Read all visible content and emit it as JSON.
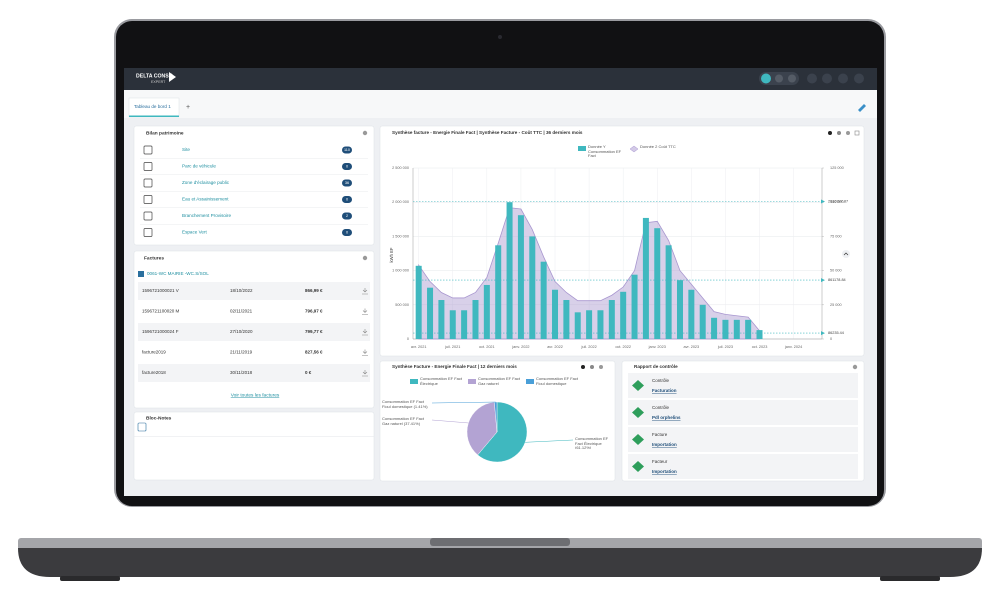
{
  "header": {
    "brand": "DELTA CONSO",
    "brand_sub": "EXPERT"
  },
  "tabs": {
    "active": "Tableau de bord 1",
    "add": "+"
  },
  "bilan": {
    "title": "Bilan patrimoine",
    "rows": [
      {
        "label": "Site",
        "count": 110
      },
      {
        "label": "Parc de véhicule",
        "count": 0
      },
      {
        "label": "Zone d'éclairage public",
        "count": 36
      },
      {
        "label": "Eau et Assainissement",
        "count": 0
      },
      {
        "label": "Branchement Provisoire",
        "count": 2
      },
      {
        "label": "Espace Vert",
        "count": 0
      }
    ]
  },
  "factures": {
    "title": "Factures",
    "site": "0061-WC MAIRIE -WC.S/SOL",
    "rows": [
      [
        "1596721000021 V",
        "18/10/2022",
        "866,99 €"
      ],
      [
        "1596721100020 M",
        "02/11/2021",
        "796,97 €"
      ],
      [
        "1596721000024 F",
        "27/10/2020",
        "799,77 €"
      ],
      [
        "facture2019",
        "21/11/2019",
        "827,56 €"
      ],
      [
        "facture2018",
        "30/11/2018",
        "0 €"
      ]
    ],
    "link": "Voir toutes les factures"
  },
  "notes": {
    "title": "Bloc-Notes"
  },
  "rapport": {
    "title": "Rapport de contrôle",
    "items": [
      {
        "kind": "Contrôle",
        "link": "Facturation"
      },
      {
        "kind": "Contrôle",
        "link": "Pdl orphelins"
      },
      {
        "kind": "Facture",
        "link": "Importation"
      },
      {
        "kind": "Facteur",
        "link": "Importation"
      }
    ]
  },
  "chart_data": [
    {
      "type": "bar",
      "title": "Synthèse facture - Energie Finale Fact | Synthèse Facture - Coût TTC | 36 derniers mois",
      "y_label": "kWh EF",
      "categories": [
        "avr. 2021",
        null,
        null,
        "juil. 2021",
        null,
        null,
        "oct. 2021",
        null,
        null,
        "janv. 2022",
        null,
        null,
        "avr. 2022",
        null,
        null,
        "juil. 2022",
        null,
        null,
        "oct. 2022",
        null,
        null,
        "janv. 2023",
        null,
        null,
        "avr. 2023",
        null,
        null,
        "juil. 2023",
        null,
        null,
        "oct. 2023",
        null,
        null,
        "janv. 2024",
        null,
        null
      ],
      "series": [
        {
          "name": "Donnée Y Consommation EF Fact",
          "type": "bar",
          "color": "#3fb8bf",
          "values": [
            1070000,
            750000,
            570000,
            420000,
            420000,
            570000,
            790000,
            1370000,
            2000000,
            1810000,
            1500000,
            1130000,
            720000,
            570000,
            390000,
            420000,
            420000,
            570000,
            690000,
            940000,
            1770000,
            1620000,
            1370000,
            860000,
            720000,
            500000,
            310000,
            280000,
            280000,
            280000,
            130000,
            null,
            null,
            null,
            null,
            null
          ]
        },
        {
          "name": "Donnée 2 Coût TTC",
          "type": "area",
          "axis": "y2",
          "color": "#a896cf",
          "values": [
            54000,
            42000,
            34000,
            30000,
            30000,
            34000,
            45000,
            70000,
            96000,
            95000,
            80000,
            60000,
            42000,
            34000,
            28000,
            28000,
            28000,
            32000,
            38000,
            50000,
            85000,
            86000,
            72000,
            50000,
            40000,
            30000,
            20000,
            18000,
            17000,
            16000,
            6000,
            null,
            null,
            null,
            null,
            null
          ]
        }
      ],
      "ylim": [
        0,
        2500000
      ],
      "yticks": [
        0,
        {
          "value": 500000,
          "label": "500 000"
        },
        {
          "value": 1000000,
          "label": "1 000 000"
        },
        {
          "value": 1500000,
          "label": "1 500 000"
        },
        {
          "value": 2000000,
          "label": "2 000 000"
        },
        {
          "value": 2500000,
          "label": "2 500 000"
        }
      ],
      "y2lim": [
        0,
        125000
      ],
      "y2ticks": [
        0,
        {
          "value": 25000,
          "label": "25 000"
        },
        {
          "value": 50000,
          "label": "50 000"
        },
        {
          "value": 75000,
          "label": "75 000"
        },
        {
          "value": 100000,
          "label": "100 000"
        },
        {
          "value": 125000,
          "label": "125 000"
        }
      ],
      "annotations": [
        {
          "value": 2010397.87
        },
        {
          "value": 861178.84
        },
        {
          "value": 86235.44
        }
      ],
      "grid": true
    },
    {
      "type": "pie",
      "title": "Synthèse Facture - Energie Finale Fact | 12 derniers mois",
      "categories": [
        "Consommation EF Fact Électrique",
        "Consommation EF Fact Gaz naturel",
        "Consommation EF Fact Fioul domestique"
      ],
      "values": [
        61.12,
        37.41,
        1.41
      ],
      "value_labels": [
        "Consommation EF Fact Électrique (61.12%)",
        "Consommation EF Fact Gaz naturel (37.41%)",
        "Consommation EF Fact Fioul domestique (1.41%)"
      ],
      "colors": [
        "#3fb8bf",
        "#b3a3d3",
        "#4a9fd8"
      ]
    }
  ]
}
